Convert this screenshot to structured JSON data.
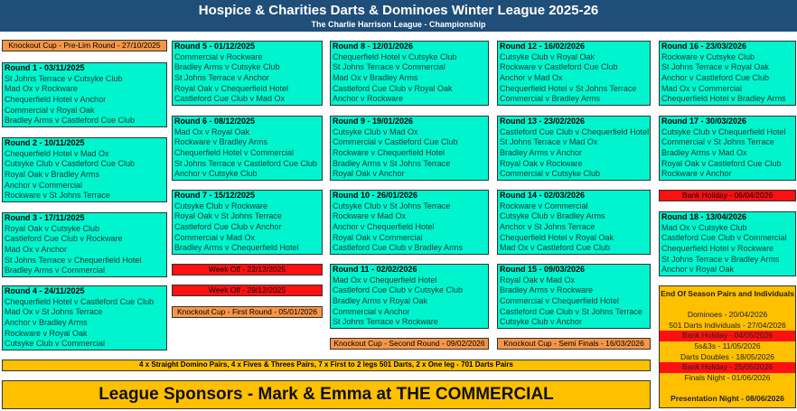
{
  "header": {
    "title": "Hospice & Charities Darts & Dominoes Winter League 2025-26",
    "subtitle": "The Charlie Harrison League - Championship"
  },
  "colors": {
    "header": "#1f4e79",
    "round": "#00f5cf",
    "cup": "#f79646",
    "off": "#ff1010",
    "gold": "#ffc000"
  },
  "columns": [
    [
      {
        "type": "cup",
        "label": "Knockout Cup - Pre-Lim Round - 27/10/2025"
      },
      {
        "type": "round",
        "title": "Round 1 - 03/11/2025",
        "fixtures": [
          "St Johns Terrace v Cutsyke Club",
          "Mad Ox v Rockware",
          "Chequerfield Hotel v Anchor",
          "Commercial v Royal Oak",
          "Bradley Arms v Castleford Cue Club"
        ]
      },
      {
        "type": "round",
        "title": "Round 2 - 10/11/2025",
        "fixtures": [
          "Chequerfield Hotel v Mad Ox",
          "Cutsyke Club v Castleford Cue Club",
          "Royal Oak v Bradley Arms",
          "Anchor v Commercial",
          "Rockware v St Johns Terrace"
        ]
      },
      {
        "type": "round",
        "title": "Round 3 - 17/11/2025",
        "fixtures": [
          "Royal Oak v Cutsyke Club",
          "Castleford Cue Club v Rockware",
          "Mad Ox v Anchor",
          "St Johns Terrace v Chequerfield Hotel",
          "Bradley Arms v Commercial"
        ]
      },
      {
        "type": "round",
        "title": "Round 4 - 24/11/2025",
        "fixtures": [
          "Chequerfield Hotel v Castleford Cue Club",
          "Mad Ox v St Johns Terrace",
          "Anchor v Bradley Arms",
          "Rockware v Royal Oak",
          "Cutsyke Club v Commercial"
        ]
      }
    ],
    [
      {
        "type": "round",
        "title": "Round 5 - 01/12/2025",
        "fixtures": [
          "Commercial v Rockware",
          "Bradley Arms v Cutsyke Club",
          "St Johns Terrace v Anchor",
          "Royal Oak v Chequerfield Hotel",
          "Castleford Cue Club v Mad Ox"
        ]
      },
      {
        "type": "round",
        "title": "Round 6 - 08/12/2025",
        "fixtures": [
          "Mad Ox v Royal Oak",
          "Rockware v Bradley Arms",
          "Chequerfield Hotel v Commercial",
          "St Johns Terrace v Castleford Cue Club",
          "Anchor v Cutsyke Club"
        ]
      },
      {
        "type": "round",
        "title": "Round 7 - 15/12/2025",
        "fixtures": [
          "Cutsyke Club v Rockware",
          "Royal Oak v St Johns Terrace",
          "Castleford Cue Club v Anchor",
          "Commercial v Mad Ox",
          "Bradley Arms v Chequerfield Hotel"
        ]
      },
      {
        "type": "off",
        "label": "Week Off - 22/12/2025"
      },
      {
        "type": "off",
        "label": "Week Off - 29/12/2025"
      },
      {
        "type": "cup",
        "label": "Knockout Cup - First Round - 05/01/2026"
      }
    ],
    [
      {
        "type": "round",
        "title": "Round 8 - 12/01/2026",
        "fixtures": [
          "Chequerfield Hotel v Cutsyke Club",
          "St Johns Terrace v Commercial",
          "Mad Ox v Bradley Arms",
          "Castleford Cue Club v Royal Oak",
          "Anchor v Rockware"
        ]
      },
      {
        "type": "round",
        "title": "Round 9 - 19/01/2026",
        "fixtures": [
          "Cutsyke Club v Mad Ox",
          "Commercial v Castleford Cue Club",
          "Rockware v Chequerfield Hotel",
          "Bradley Arms v St Johns Terrace",
          "Royal Oak v Anchor"
        ]
      },
      {
        "type": "round",
        "title": "Round 10 - 26/01/2026",
        "fixtures": [
          "Cutsyke Club v St Johns Terrace",
          "Rockware v Mad Ox",
          "Anchor v Chequerfield Hotel",
          "Royal Oak v Commercial",
          "Castleford Cue Club v Bradley Arms"
        ]
      },
      {
        "type": "round",
        "title": "Round 11 - 02/02/2026",
        "fixtures": [
          "Mad Ox v Chequerfield Hotel",
          "Castleford Cue Club v Cutsyke Club",
          "Bradley Arms v Royal Oak",
          "Commercial v Anchor",
          "St Johns Terrace v Rockware"
        ]
      },
      {
        "type": "cup",
        "label": "Knockout Cup - Second Round - 09/02/2026"
      }
    ],
    [
      {
        "type": "round",
        "title": "Round 12 - 16/02/2026",
        "fixtures": [
          "Cutsyke Club v Royal Oak",
          "Rockware v Castleford Cue Club",
          "Anchor v Mad Ox",
          "Chequerfield Hotel v St Johns Terrace",
          "Commercial v Bradley Arms"
        ]
      },
      {
        "type": "round",
        "title": "Round 13 - 23/02/2026",
        "fixtures": [
          "Castleford Cue Club v Chequerfield Hotel",
          "St Johns Terrace v Mad Ox",
          "Bradley Arms v Anchor",
          "Royal Oak v Rockware",
          "Commercial v Cutsyke Club"
        ]
      },
      {
        "type": "round",
        "title": "Round 14 - 02/03/2026",
        "fixtures": [
          "Rockware v Commercial",
          "Cutsyke Club v Bradley Arms",
          "Anchor v St Johns Terrace",
          "Chequerfield Hotel v Royal Oak",
          "Mad Ox v Castleford Cue Club"
        ]
      },
      {
        "type": "round",
        "title": "Round 15 - 09/03/2026",
        "fixtures": [
          "Royal Oak v Mad Ox",
          "Bradley Arms v Rockware",
          "Commercial v Chequerfield Hotel",
          "Castleford Cue Club v St Johns Terrace",
          "Cutsyke Club v Anchor"
        ]
      },
      {
        "type": "cup",
        "label": "Knockout Cup - Semi Finals - 16/03/2026"
      }
    ],
    [
      {
        "type": "round",
        "title": "Round 16 - 23/03/2026",
        "fixtures": [
          "Rockware v Cutsyke Club",
          "St Johns Terrace v Royal Oak",
          "Anchor v Castleford Cue Club",
          "Mad Ox v Commercial",
          "Chequerfield Hotel v Bradley Arms"
        ]
      },
      {
        "type": "round",
        "title": "Round 17 - 30/03/2026",
        "fixtures": [
          "Cutsyke Club v Chequerfield Hotel",
          "Commercial v St Johns Terrace",
          "Bradley Arms v Mad Ox",
          "Royal Oak v Castleford Cue Club",
          "Rockware v Anchor"
        ]
      },
      {
        "type": "off",
        "label": "Bank Holiday - 06/04/2026"
      },
      {
        "type": "round",
        "title": "Round 18 - 13/04/2026",
        "fixtures": [
          "Mad Ox v Cutsyke Club",
          "Castleford Cue Club v Commercial",
          "Chequerfield Hotel v Rockware",
          "St Johns Terrace v Bradley Arms",
          "Anchor v Royal Oak"
        ]
      }
    ]
  ],
  "end_of_season": {
    "title": "End Of Season Pairs and Individuals",
    "items": [
      {
        "label": "Dominoes - 20/04/2026",
        "style": "normal"
      },
      {
        "label": "501 Darts Individuals - 27/04/2026",
        "style": "normal"
      },
      {
        "label": "Bank Holiday - 04/05/2026",
        "style": "holiday"
      },
      {
        "label": "5s&3s - 11/05/2026",
        "style": "normal"
      },
      {
        "label": "Darts Doubles - 18/05/2026",
        "style": "normal"
      },
      {
        "label": "Bank Holiday - 25/05/2026",
        "style": "holiday"
      },
      {
        "label": "Finals Night - 01/06/2026",
        "style": "normal"
      }
    ],
    "final": "Presentation Night - 08/06/2026"
  },
  "format_note": "4 x Straight Domino Pairs, 4 x Fives & Threes Pairs, 7 x First to 2 legs 501 Darts, 2 x One leg - 701 Darts Pairs",
  "sponsor": "League Sponsors - Mark & Emma at THE COMMERCIAL"
}
